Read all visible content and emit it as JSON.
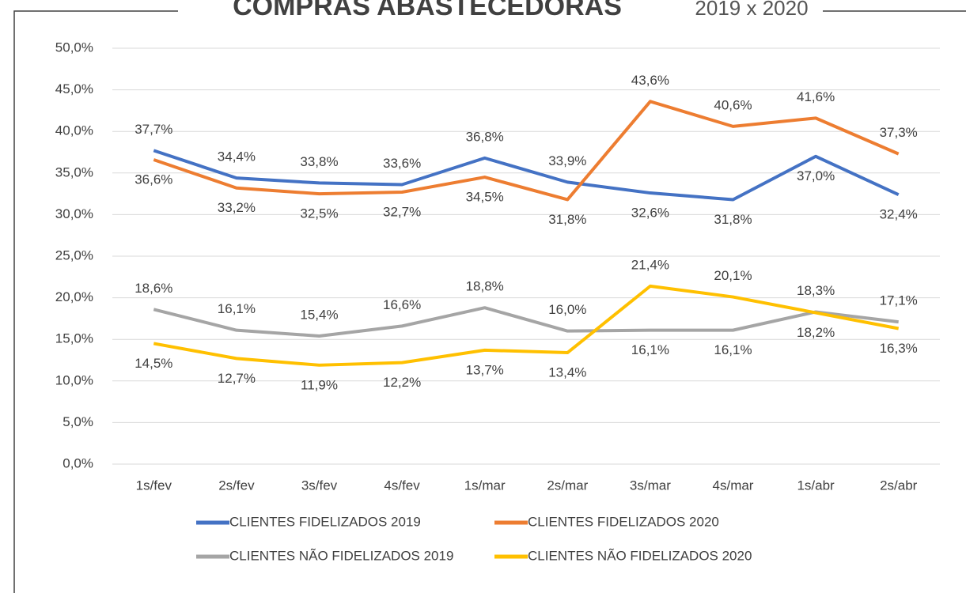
{
  "chart_data": {
    "type": "line",
    "title": "COMPRAS ABASTECEDORAS",
    "subtitle": "2019 x 2020",
    "categories": [
      "1s/fev",
      "2s/fev",
      "3s/fev",
      "4s/fev",
      "1s/mar",
      "2s/mar",
      "3s/mar",
      "4s/mar",
      "1s/abr",
      "2s/abr"
    ],
    "ylim": [
      0,
      50
    ],
    "yticks": [
      {
        "value": 0,
        "label": "0,0%"
      },
      {
        "value": 5,
        "label": "5,0%"
      },
      {
        "value": 10,
        "label": "10,0%"
      },
      {
        "value": 15,
        "label": "15,0%"
      },
      {
        "value": 20,
        "label": "20,0%"
      },
      {
        "value": 25,
        "label": "25,0%"
      },
      {
        "value": 30,
        "label": "30,0%"
      },
      {
        "value": 35,
        "label": "35,0%"
      },
      {
        "value": 40,
        "label": "40,0%"
      },
      {
        "value": 45,
        "label": "45,0%"
      },
      {
        "value": 50,
        "label": "50,0%"
      }
    ],
    "grid": true,
    "series": [
      {
        "name": "CLIENTES FIDELIZADOS 2019",
        "color": "#4472c4",
        "values": [
          37.7,
          34.4,
          33.8,
          33.6,
          36.8,
          33.9,
          32.6,
          31.8,
          37.0,
          32.4
        ],
        "value_labels": [
          "37,7%",
          "34,4%",
          "33,8%",
          "33,6%",
          "36,8%",
          "33,9%",
          "32,6%",
          "31,8%",
          "37,0%",
          "32,4%"
        ]
      },
      {
        "name": "CLIENTES FIDELIZADOS 2020",
        "color": "#ed7d31",
        "values": [
          36.6,
          33.2,
          32.5,
          32.7,
          34.5,
          31.8,
          43.6,
          40.6,
          41.6,
          37.3
        ],
        "value_labels": [
          "36,6%",
          "33,2%",
          "32,5%",
          "32,7%",
          "34,5%",
          "31,8%",
          "43,6%",
          "40,6%",
          "41,6%",
          "37,3%"
        ]
      },
      {
        "name": "CLIENTES NÃO FIDELIZADOS 2019",
        "color": "#a5a5a5",
        "values": [
          18.6,
          16.1,
          15.4,
          16.6,
          18.8,
          16.0,
          16.1,
          16.1,
          18.3,
          17.1
        ],
        "value_labels": [
          "18,6%",
          "16,1%",
          "15,4%",
          "16,6%",
          "18,8%",
          "16,0%",
          "16,1%",
          "16,1%",
          "18,3%",
          "17,1%"
        ]
      },
      {
        "name": "CLIENTES NÃO FIDELIZADOS 2020",
        "color": "#ffc000",
        "values": [
          14.5,
          12.7,
          11.9,
          12.2,
          13.7,
          13.4,
          21.4,
          20.1,
          18.2,
          16.3
        ],
        "value_labels": [
          "14,5%",
          "12,7%",
          "11,9%",
          "12,2%",
          "13,7%",
          "13,4%",
          "21,4%",
          "20,1%",
          "18,2%",
          "16,3%"
        ]
      }
    ]
  }
}
